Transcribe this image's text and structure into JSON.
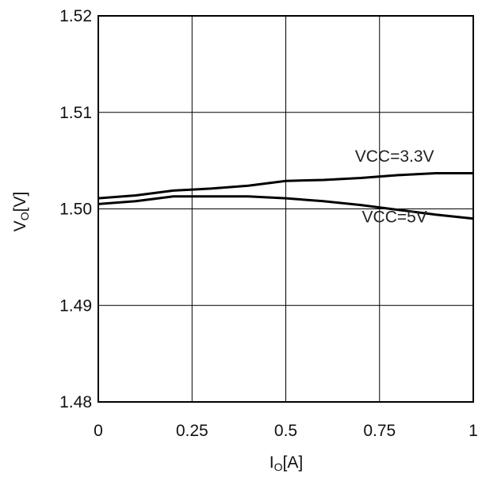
{
  "chart_data": {
    "type": "line",
    "xlabel": {
      "main": "I",
      "sub": "O",
      "unit": "[A]"
    },
    "ylabel": {
      "main": "V",
      "sub": "O",
      "unit": "[V]"
    },
    "xlim": [
      0,
      1
    ],
    "ylim": [
      1.48,
      1.52
    ],
    "x_ticks": [
      0,
      0.25,
      0.5,
      0.75,
      1
    ],
    "x_tick_labels": [
      "0",
      "0.25",
      "0.5",
      "0.75",
      "1"
    ],
    "y_ticks": [
      1.48,
      1.49,
      1.5,
      1.51,
      1.52
    ],
    "y_tick_labels": [
      "1.48",
      "1.49",
      "1.50",
      "1.51",
      "1.52"
    ],
    "grid": true,
    "series": [
      {
        "name": "VCC=3.3V",
        "x": [
          0,
          0.1,
          0.2,
          0.3,
          0.4,
          0.5,
          0.6,
          0.7,
          0.8,
          0.9,
          1.0
        ],
        "y": [
          1.5011,
          1.5014,
          1.5019,
          1.5021,
          1.5024,
          1.5029,
          1.503,
          1.5032,
          1.5035,
          1.5037,
          1.5037
        ]
      },
      {
        "name": "VCC=5V",
        "x": [
          0,
          0.1,
          0.2,
          0.3,
          0.4,
          0.5,
          0.6,
          0.7,
          0.8,
          0.9,
          1.0
        ],
        "y": [
          1.5005,
          1.5008,
          1.5013,
          1.5013,
          1.5013,
          1.5011,
          1.5008,
          1.5004,
          1.4999,
          1.4994,
          1.499
        ]
      }
    ],
    "reference_lines": [
      1.5
    ],
    "annotations": [
      {
        "text": "VCC=3.3V",
        "series": 0
      },
      {
        "text": "VCC=5V",
        "series": 1
      }
    ],
    "line_color": "#000000"
  }
}
